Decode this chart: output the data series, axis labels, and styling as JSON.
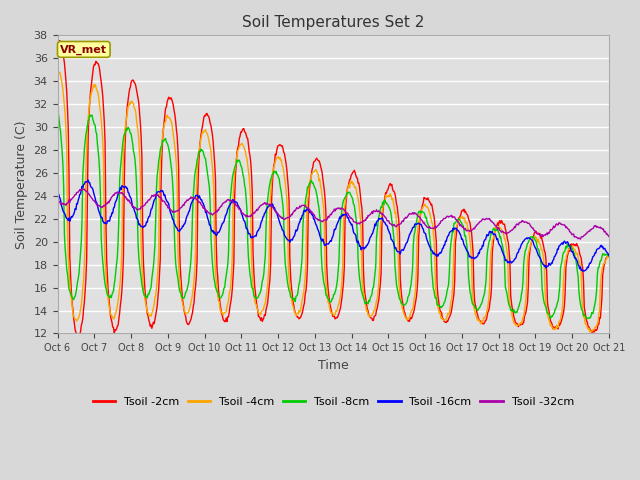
{
  "title": "Soil Temperatures Set 2",
  "xlabel": "Time",
  "ylabel": "Soil Temperature (C)",
  "ylim": [
    12,
    38
  ],
  "yticks": [
    12,
    14,
    16,
    18,
    20,
    22,
    24,
    26,
    28,
    30,
    32,
    34,
    36,
    38
  ],
  "xtick_labels": [
    "Oct 6",
    "Oct 7",
    "Oct 8",
    "Oct 9",
    "Oct 10",
    "Oct 11",
    "Oct 12",
    "Oct 13",
    "Oct 14",
    "Oct 15",
    "Oct 16",
    "Oct 17",
    "Oct 18",
    "Oct 19",
    "Oct 20",
    "Oct 21"
  ],
  "annotation_text": "VR_met",
  "annotation_color": "#8B0000",
  "annotation_bg": "#FFFFA0",
  "colors": {
    "Tsoil -2cm": "#FF0000",
    "Tsoil -4cm": "#FFA500",
    "Tsoil -8cm": "#00CC00",
    "Tsoil -16cm": "#0000FF",
    "Tsoil -32cm": "#AA00AA"
  },
  "bg_color": "#E0E0E0",
  "grid_color": "#FFFFFF",
  "fig_bg": "#D8D8D8"
}
